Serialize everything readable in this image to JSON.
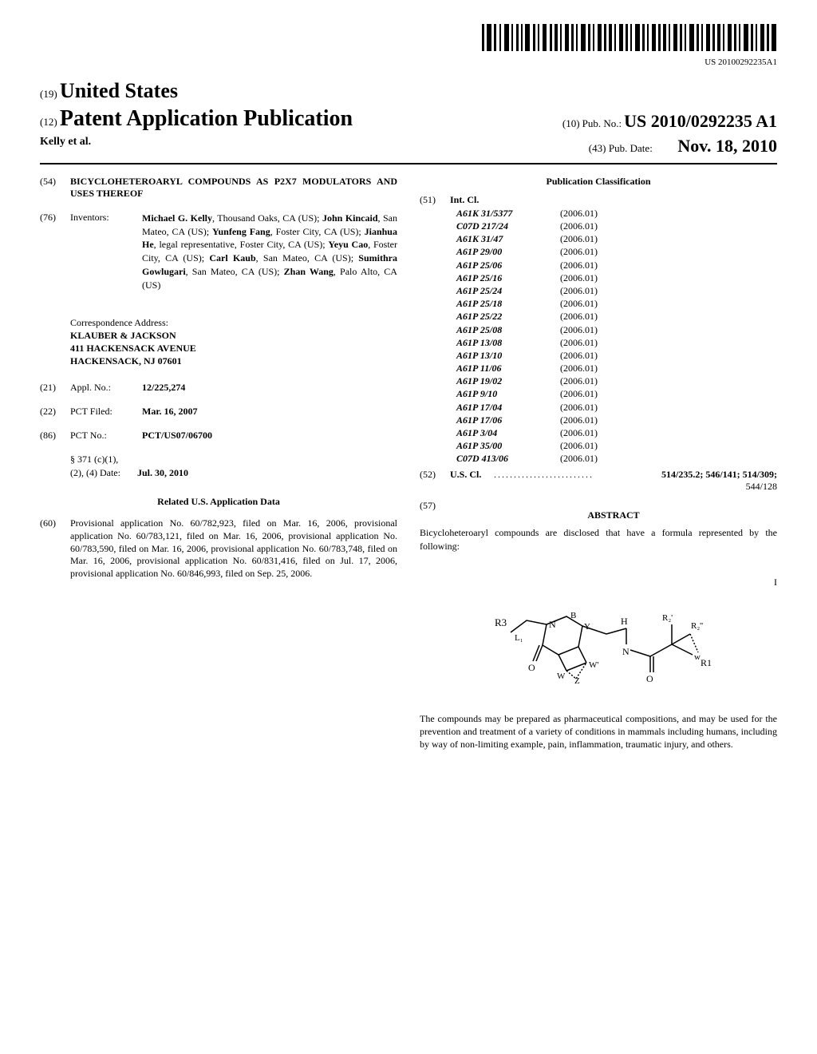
{
  "barcode_number": "US 20100292235A1",
  "header": {
    "line1_prefix": "(19)",
    "line1_main": "United States",
    "line2_prefix": "(12)",
    "line2_main": "Patent Application Publication",
    "pubno_prefix": "(10)",
    "pubno_label": "Pub. No.:",
    "pubno_value": "US 2010/0292235 A1",
    "authors": "Kelly et al.",
    "pubdate_prefix": "(43)",
    "pubdate_label": "Pub. Date:",
    "pubdate_value": "Nov. 18, 2010"
  },
  "left_col": {
    "title_num": "(54)",
    "title_value": "BICYCLOHETEROARYL COMPOUNDS AS P2X7 MODULATORS AND USES THEREOF",
    "inventors_num": "(76)",
    "inventors_label": "Inventors:",
    "inventors_html": "Michael G. Kelly|, Thousand Oaks, CA (US); |John Kincaid|, San Mateo, CA (US); |Yunfeng Fang|, Foster City, CA (US); |Jianhua He|, legal representative, Foster City, CA (US); |Yeyu Cao|, Foster City, CA (US); |Carl Kaub|, San Mateo, CA (US); |Sumithra Gowlugari|, San Mateo, CA (US); |Zhan Wang|, Palo Alto, CA (US)",
    "corr_label": "Correspondence Address:",
    "corr_name": "KLAUBER & JACKSON",
    "corr_addr1": "411 HACKENSACK AVENUE",
    "corr_addr2": "HACKENSACK, NJ 07601",
    "applno_num": "(21)",
    "applno_label": "Appl. No.:",
    "applno_value": "12/225,274",
    "pctfiled_num": "(22)",
    "pctfiled_label": "PCT Filed:",
    "pctfiled_value": "Mar. 16, 2007",
    "pctno_num": "(86)",
    "pctno_label": "PCT No.:",
    "pctno_value": "PCT/US07/06700",
    "s371_line1": "§ 371 (c)(1),",
    "s371_line2_label": "(2), (4) Date:",
    "s371_line2_value": "Jul. 30, 2010",
    "related_heading": "Related U.S. Application Data",
    "provisional_num": "(60)",
    "provisional_text": "Provisional application No. 60/782,923, filed on Mar. 16, 2006, provisional application No. 60/783,121, filed on Mar. 16, 2006, provisional application No. 60/783,590, filed on Mar. 16, 2006, provisional application No. 60/783,748, filed on Mar. 16, 2006, provisional application No. 60/831,416, filed on Jul. 17, 2006, provisional application No. 60/846,993, filed on Sep. 25, 2006."
  },
  "right_col": {
    "pubclass_heading": "Publication Classification",
    "intcl_num": "(51)",
    "intcl_label": "Int. Cl.",
    "intcl_items": [
      {
        "code": "A61K 31/5377",
        "year": "(2006.01)"
      },
      {
        "code": "C07D 217/24",
        "year": "(2006.01)"
      },
      {
        "code": "A61K 31/47",
        "year": "(2006.01)"
      },
      {
        "code": "A61P 29/00",
        "year": "(2006.01)"
      },
      {
        "code": "A61P 25/06",
        "year": "(2006.01)"
      },
      {
        "code": "A61P 25/16",
        "year": "(2006.01)"
      },
      {
        "code": "A61P 25/24",
        "year": "(2006.01)"
      },
      {
        "code": "A61P 25/18",
        "year": "(2006.01)"
      },
      {
        "code": "A61P 25/22",
        "year": "(2006.01)"
      },
      {
        "code": "A61P 25/08",
        "year": "(2006.01)"
      },
      {
        "code": "A61P 13/08",
        "year": "(2006.01)"
      },
      {
        "code": "A61P 13/10",
        "year": "(2006.01)"
      },
      {
        "code": "A61P 11/06",
        "year": "(2006.01)"
      },
      {
        "code": "A61P 19/02",
        "year": "(2006.01)"
      },
      {
        "code": "A61P 9/10",
        "year": "(2006.01)"
      },
      {
        "code": "A61P 17/04",
        "year": "(2006.01)"
      },
      {
        "code": "A61P 17/06",
        "year": "(2006.01)"
      },
      {
        "code": "A61P 3/04",
        "year": "(2006.01)"
      },
      {
        "code": "A61P 35/00",
        "year": "(2006.01)"
      },
      {
        "code": "C07D 413/06",
        "year": "(2006.01)"
      }
    ],
    "uscl_num": "(52)",
    "uscl_label": "U.S. Cl.",
    "uscl_value": "514/235.2; 546/141; 514/309;",
    "uscl_value2": "544/128",
    "abstract_num": "(57)",
    "abstract_heading": "ABSTRACT",
    "abstract_text1": "Bicycloheteroaryl compounds are disclosed that have a formula represented by the following:",
    "formula_label": "I",
    "abstract_text2": "The compounds may be prepared as pharmaceutical compositions, and may be used for the prevention and treatment of a variety of conditions in mammals including humans, including by way of non-limiting example, pain, inflammation, traumatic injury, and others."
  }
}
